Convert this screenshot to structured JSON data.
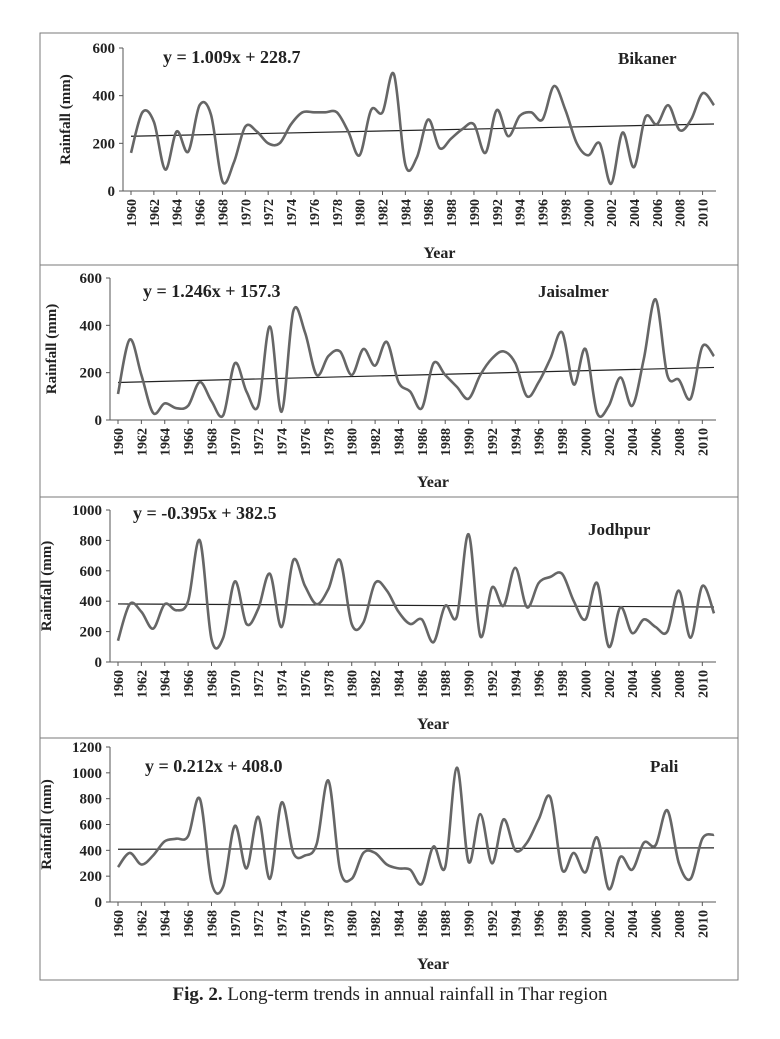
{
  "caption": {
    "label": "Fig. 2.",
    "text": "Long-term trends in annual rainfall in Thar region"
  },
  "chart_data": [
    {
      "type": "line",
      "station": "Bikaner",
      "equation": "y = 1.009x + 228.7",
      "xlabel": "Year",
      "ylabel": "Rainfall (mm)",
      "ylim": [
        0,
        600
      ],
      "yticks": [
        0,
        200,
        400,
        600
      ],
      "xticks": [
        "1960",
        "1962",
        "1964",
        "1966",
        "1968",
        "1970",
        "1972",
        "1974",
        "1976",
        "1978",
        "1980",
        "1982",
        "1984",
        "1986",
        "1988",
        "1990",
        "1992",
        "1994",
        "1996",
        "1998",
        "2000",
        "2002",
        "2004",
        "2006",
        "2008",
        "2010"
      ],
      "x": [
        1960,
        1961,
        1962,
        1963,
        1964,
        1965,
        1966,
        1967,
        1968,
        1969,
        1970,
        1971,
        1972,
        1973,
        1974,
        1975,
        1976,
        1977,
        1978,
        1979,
        1980,
        1981,
        1982,
        1983,
        1984,
        1985,
        1986,
        1987,
        1988,
        1989,
        1990,
        1991,
        1992,
        1993,
        1994,
        1995,
        1996,
        1997,
        1998,
        1999,
        2000,
        2001,
        2002,
        2003,
        2004,
        2005,
        2006,
        2007,
        2008,
        2009,
        2010,
        2011
      ],
      "y": [
        160,
        330,
        290,
        90,
        250,
        165,
        360,
        320,
        40,
        120,
        270,
        250,
        200,
        200,
        280,
        330,
        330,
        330,
        330,
        250,
        150,
        340,
        330,
        490,
        110,
        140,
        300,
        180,
        220,
        260,
        280,
        160,
        340,
        230,
        315,
        330,
        300,
        440,
        340,
        200,
        150,
        200,
        30,
        245,
        100,
        310,
        280,
        360,
        255,
        300,
        410,
        360
      ],
      "trend": {
        "slope": 1.009,
        "intercept": 228.7
      }
    },
    {
      "type": "line",
      "station": "Jaisalmer",
      "equation": "y = 1.246x + 157.3",
      "xlabel": "Year",
      "ylabel": "Rainfall (mm)",
      "ylim": [
        0,
        600
      ],
      "yticks": [
        0,
        200,
        400,
        600
      ],
      "xticks": [
        "1960",
        "1962",
        "1964",
        "1966",
        "1968",
        "1970",
        "1972",
        "1974",
        "1976",
        "1978",
        "1980",
        "1982",
        "1984",
        "1986",
        "1988",
        "1990",
        "1992",
        "1994",
        "1996",
        "1998",
        "2000",
        "2002",
        "2004",
        "2006",
        "2008",
        "2010"
      ],
      "x": [
        1960,
        1961,
        1962,
        1963,
        1964,
        1965,
        1966,
        1967,
        1968,
        1969,
        1970,
        1971,
        1972,
        1973,
        1974,
        1975,
        1976,
        1977,
        1978,
        1979,
        1980,
        1981,
        1982,
        1983,
        1984,
        1985,
        1986,
        1987,
        1988,
        1989,
        1990,
        1991,
        1992,
        1993,
        1994,
        1995,
        1996,
        1997,
        1998,
        1999,
        2000,
        2001,
        2002,
        2003,
        2004,
        2005,
        2006,
        2007,
        2008,
        2009,
        2010,
        2011
      ],
      "y": [
        110,
        340,
        190,
        30,
        70,
        50,
        60,
        160,
        80,
        20,
        240,
        120,
        60,
        395,
        35,
        460,
        370,
        190,
        270,
        290,
        190,
        300,
        230,
        330,
        160,
        120,
        50,
        240,
        190,
        140,
        90,
        190,
        260,
        290,
        240,
        100,
        160,
        260,
        370,
        150,
        300,
        30,
        60,
        180,
        60,
        260,
        510,
        190,
        170,
        90,
        310,
        270
      ],
      "trend": {
        "slope": 1.246,
        "intercept": 157.3
      }
    },
    {
      "type": "line",
      "station": "Jodhpur",
      "equation": "y = -0.395x + 382.5",
      "xlabel": "Year",
      "ylabel": "Rainfall (mm)",
      "ylim": [
        0,
        1000
      ],
      "yticks": [
        0,
        200,
        400,
        600,
        800,
        1000
      ],
      "xticks": [
        "1960",
        "1962",
        "1964",
        "1966",
        "1968",
        "1970",
        "1972",
        "1974",
        "1976",
        "1978",
        "1980",
        "1982",
        "1984",
        "1986",
        "1988",
        "1990",
        "1992",
        "1994",
        "1996",
        "1998",
        "2000",
        "2002",
        "2004",
        "2006",
        "2008",
        "2010"
      ],
      "x": [
        1960,
        1961,
        1962,
        1963,
        1964,
        1965,
        1966,
        1967,
        1968,
        1969,
        1970,
        1971,
        1972,
        1973,
        1974,
        1975,
        1976,
        1977,
        1978,
        1979,
        1980,
        1981,
        1982,
        1983,
        1984,
        1985,
        1986,
        1987,
        1988,
        1989,
        1990,
        1991,
        1992,
        1993,
        1994,
        1995,
        1996,
        1997,
        1998,
        1999,
        2000,
        2001,
        2002,
        2003,
        2004,
        2005,
        2006,
        2007,
        2008,
        2009,
        2010,
        2011
      ],
      "y": [
        140,
        380,
        330,
        220,
        380,
        340,
        400,
        800,
        150,
        160,
        530,
        250,
        350,
        580,
        230,
        670,
        500,
        380,
        480,
        670,
        250,
        260,
        520,
        470,
        330,
        250,
        280,
        130,
        370,
        300,
        840,
        170,
        490,
        370,
        620,
        360,
        520,
        560,
        580,
        400,
        280,
        520,
        100,
        360,
        190,
        280,
        230,
        200,
        470,
        160,
        500,
        320
      ],
      "trend": {
        "slope": -0.395,
        "intercept": 382.5
      }
    },
    {
      "type": "line",
      "station": "Pali",
      "equation": "y = 0.212x + 408.0",
      "xlabel": "Year",
      "ylabel": "Rainfall (mm)",
      "ylim": [
        0,
        1200
      ],
      "yticks": [
        0,
        200,
        400,
        600,
        800,
        1000,
        1200
      ],
      "xticks": [
        "1960",
        "1962",
        "1964",
        "1966",
        "1968",
        "1970",
        "1972",
        "1974",
        "1976",
        "1978",
        "1980",
        "1982",
        "1984",
        "1986",
        "1988",
        "1990",
        "1992",
        "1994",
        "1996",
        "1998",
        "2000",
        "2002",
        "2004",
        "2006",
        "2008",
        "2010"
      ],
      "x": [
        1960,
        1961,
        1962,
        1963,
        1964,
        1965,
        1966,
        1967,
        1968,
        1969,
        1970,
        1971,
        1972,
        1973,
        1974,
        1975,
        1976,
        1977,
        1978,
        1979,
        1980,
        1981,
        1982,
        1983,
        1984,
        1985,
        1986,
        1987,
        1988,
        1989,
        1990,
        1991,
        1992,
        1993,
        1994,
        1995,
        1996,
        1997,
        1998,
        1999,
        2000,
        2001,
        2002,
        2003,
        2004,
        2005,
        2006,
        2007,
        2008,
        2009,
        2010,
        2011
      ],
      "y": [
        270,
        380,
        290,
        360,
        470,
        490,
        510,
        800,
        150,
        120,
        590,
        260,
        660,
        180,
        770,
        380,
        360,
        450,
        940,
        250,
        180,
        380,
        380,
        290,
        260,
        250,
        140,
        430,
        270,
        1040,
        310,
        680,
        300,
        640,
        400,
        460,
        640,
        810,
        250,
        380,
        230,
        500,
        100,
        350,
        250,
        460,
        440,
        710,
        300,
        180,
        490,
        520
      ],
      "trend": {
        "slope": 0.212,
        "intercept": 408.0
      }
    }
  ]
}
